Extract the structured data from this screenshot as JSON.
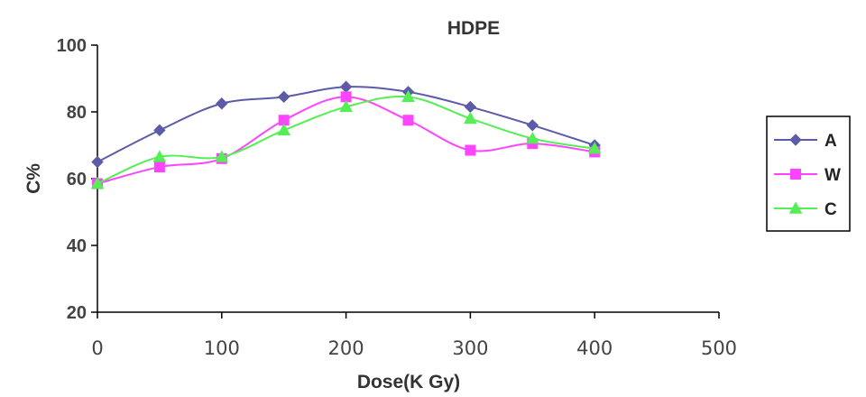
{
  "chart_data": {
    "type": "line",
    "title": "HDPE",
    "xlabel": "Dose(K Gy)",
    "ylabel": "C%",
    "xlim": [
      0,
      500
    ],
    "ylim": [
      20,
      100
    ],
    "x_ticks": [
      "0",
      "100",
      "200",
      "300",
      "400",
      "500"
    ],
    "y_ticks": [
      "20",
      "40",
      "60",
      "80",
      "100"
    ],
    "grid": false,
    "legend_position": "right",
    "x": [
      0,
      50,
      100,
      150,
      200,
      250,
      300,
      350,
      400
    ],
    "series": [
      {
        "name": "A",
        "color": "#5b5ba8",
        "marker": "diamond",
        "values": [
          65,
          74.5,
          82.5,
          84.5,
          87.5,
          86,
          81.5,
          76,
          70
        ]
      },
      {
        "name": "W",
        "color": "#ff44ff",
        "marker": "square",
        "values": [
          58.5,
          63.5,
          66,
          77.5,
          84.5,
          77.5,
          68.5,
          70.5,
          68
        ]
      },
      {
        "name": "C",
        "color": "#55ee55",
        "marker": "triangle",
        "values": [
          58.5,
          66.5,
          66.5,
          74.5,
          81.5,
          84.5,
          78,
          72,
          69
        ]
      }
    ]
  }
}
